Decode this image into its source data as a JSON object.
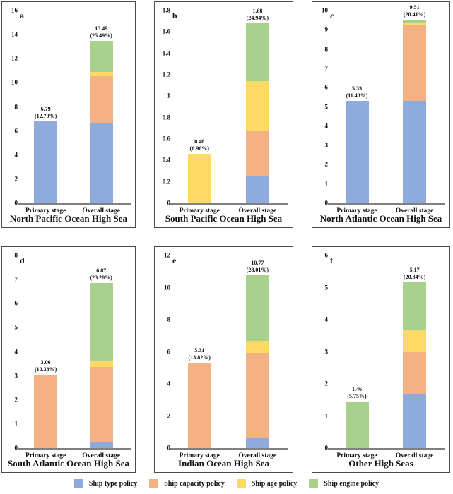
{
  "series_colors": {
    "Ship type policy": "#8FAADC",
    "Ship capacity policy": "#F4B183",
    "Ship age policy": "#FFD966",
    "Ship engine policy": "#A9D18E"
  },
  "axis_color": "#808080",
  "panel_border_color": "#4b4b4b",
  "legend": {
    "position": "bottom",
    "items": [
      {
        "label": "Ship type policy",
        "color": "#8FAADC"
      },
      {
        "label": "Ship capacity policy",
        "color": "#F4B183"
      },
      {
        "label": "Ship age policy",
        "color": "#FFD966"
      },
      {
        "label": "Ship engine policy",
        "color": "#A9D18E"
      }
    ]
  },
  "chart_data": [
    {
      "type": "bar",
      "stacked": true,
      "panel": "a",
      "title": "North Pacific Ocean High Sea",
      "categories": [
        "Primary stage",
        "Overall stage"
      ],
      "series": [
        {
          "name": "Ship type policy",
          "values": [
            6.79,
            6.7
          ]
        },
        {
          "name": "Ship capacity policy",
          "values": [
            0,
            3.9
          ]
        },
        {
          "name": "Ship age policy",
          "values": [
            0,
            0.3
          ]
        },
        {
          "name": "Ship engine policy",
          "values": [
            0,
            2.59
          ]
        }
      ],
      "totals": [
        6.79,
        13.49
      ],
      "bar_labels": [
        [
          "6.79",
          "(12.79%)"
        ],
        [
          "13.49",
          "(25.49%)"
        ]
      ],
      "ylim": [
        0,
        16
      ],
      "ytick_step": 2,
      "grid": false
    },
    {
      "type": "bar",
      "stacked": true,
      "panel": "b",
      "title": "South Pacific Ocean High Sea",
      "categories": [
        "Primary stage",
        "Overall stage"
      ],
      "series": [
        {
          "name": "Ship type policy",
          "values": [
            0,
            0.25
          ]
        },
        {
          "name": "Ship capacity policy",
          "values": [
            0,
            0.42
          ]
        },
        {
          "name": "Ship age policy",
          "values": [
            0.46,
            0.47
          ]
        },
        {
          "name": "Ship engine policy",
          "values": [
            0,
            0.54
          ]
        }
      ],
      "totals": [
        0.46,
        1.68
      ],
      "bar_labels": [
        [
          "0.46",
          "(6.96%)"
        ],
        [
          "1.68",
          "(24.94%)"
        ]
      ],
      "ylim": [
        0,
        1.8
      ],
      "ytick_step": 0.2,
      "grid": false
    },
    {
      "type": "bar",
      "stacked": true,
      "panel": "c",
      "title": "North Atlantic Ocean High Sea",
      "categories": [
        "Primary stage",
        "Overall stage"
      ],
      "series": [
        {
          "name": "Ship type policy",
          "values": [
            5.33,
            5.3
          ]
        },
        {
          "name": "Ship capacity policy",
          "values": [
            0,
            3.95
          ]
        },
        {
          "name": "Ship age policy",
          "values": [
            0,
            0.13
          ]
        },
        {
          "name": "Ship engine policy",
          "values": [
            0,
            0.13
          ]
        }
      ],
      "totals": [
        5.33,
        9.51
      ],
      "bar_labels": [
        [
          "5.33",
          "(11.43%)"
        ],
        [
          "9.51",
          "(20.41%)"
        ]
      ],
      "ylim": [
        0,
        10
      ],
      "ytick_step": 1,
      "grid": false
    },
    {
      "type": "bar",
      "stacked": true,
      "panel": "d",
      "title": "South Atlantic Ocean High Sea",
      "categories": [
        "Primary stage",
        "Overall stage"
      ],
      "series": [
        {
          "name": "Ship type policy",
          "values": [
            0,
            0.26
          ]
        },
        {
          "name": "Ship capacity policy",
          "values": [
            3.06,
            3.1
          ]
        },
        {
          "name": "Ship age policy",
          "values": [
            0,
            0.26
          ]
        },
        {
          "name": "Ship engine policy",
          "values": [
            0,
            3.25
          ]
        }
      ],
      "totals": [
        3.06,
        6.87
      ],
      "bar_labels": [
        [
          "3.06",
          "(10.38%)"
        ],
        [
          "6.87",
          "(23.28%)"
        ]
      ],
      "ylim": [
        0,
        8
      ],
      "ytick_step": 1,
      "grid": false
    },
    {
      "type": "bar",
      "stacked": true,
      "panel": "e",
      "title": "Indian Ocean High Sea",
      "categories": [
        "Primary stage",
        "Overall stage"
      ],
      "series": [
        {
          "name": "Ship type policy",
          "values": [
            0,
            0.64
          ]
        },
        {
          "name": "Ship capacity policy",
          "values": [
            5.31,
            5.29
          ]
        },
        {
          "name": "Ship age policy",
          "values": [
            0,
            0.77
          ]
        },
        {
          "name": "Ship engine policy",
          "values": [
            0,
            4.07
          ]
        }
      ],
      "totals": [
        5.31,
        10.77
      ],
      "bar_labels": [
        [
          "5.31",
          "(13.82%)"
        ],
        [
          "10.77",
          "(28.01%)"
        ]
      ],
      "ylim": [
        0,
        12
      ],
      "ytick_step": 2,
      "grid": false
    },
    {
      "type": "bar",
      "stacked": true,
      "panel": "f",
      "title": "Other High Seas",
      "categories": [
        "Primary stage",
        "Overall stage"
      ],
      "series": [
        {
          "name": "Ship type policy",
          "values": [
            0,
            1.7
          ]
        },
        {
          "name": "Ship capacity policy",
          "values": [
            0,
            1.29
          ]
        },
        {
          "name": "Ship age policy",
          "values": [
            0,
            0.68
          ]
        },
        {
          "name": "Ship engine policy",
          "values": [
            1.46,
            1.5
          ]
        }
      ],
      "totals": [
        1.46,
        5.17
      ],
      "bar_labels": [
        [
          "1.46",
          "(5.75%)"
        ],
        [
          "5.17",
          "(20.34%)"
        ]
      ],
      "ylim": [
        0,
        6
      ],
      "ytick_step": 1,
      "grid": false
    }
  ]
}
